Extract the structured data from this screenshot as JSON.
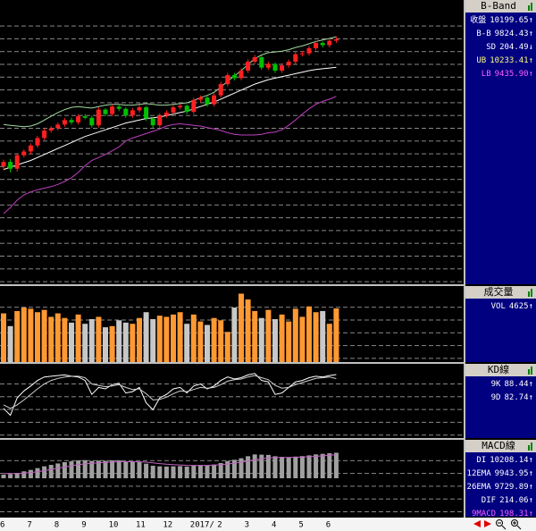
{
  "chart_data": [
    {
      "type": "candlestick",
      "title": "B-Band",
      "categories": [
        "6",
        null,
        null,
        null,
        "7",
        null,
        null,
        null,
        "8",
        null,
        null,
        null,
        "9",
        null,
        null,
        null,
        "10",
        null,
        null,
        null,
        "11",
        null,
        null,
        null,
        "12",
        null,
        null,
        null,
        "2017/",
        null,
        null,
        null,
        "2",
        null,
        null,
        null,
        "3",
        null,
        null,
        null,
        "4",
        null,
        null,
        null,
        "5",
        null,
        null,
        null,
        "6",
        null
      ],
      "open": [
        8500,
        8560,
        8470,
        8650,
        8700,
        8780,
        8880,
        8980,
        9010,
        9060,
        9120,
        9090,
        9170,
        9150,
        9050,
        9260,
        9200,
        9300,
        9270,
        9180,
        9250,
        9290,
        9140,
        9050,
        9180,
        9220,
        9290,
        9310,
        9230,
        9390,
        9420,
        9330,
        9450,
        9600,
        9720,
        9680,
        9780,
        9900,
        9960,
        9820,
        9870,
        9780,
        9850,
        9900,
        10000,
        10010,
        10080,
        10150,
        10120,
        10180
      ],
      "high": [
        8590,
        8600,
        8680,
        8730,
        8810,
        8910,
        9010,
        9040,
        9090,
        9150,
        9150,
        9200,
        9200,
        9180,
        9290,
        9280,
        9330,
        9320,
        9290,
        9280,
        9320,
        9310,
        9160,
        9210,
        9250,
        9320,
        9340,
        9330,
        9420,
        9450,
        9440,
        9480,
        9630,
        9750,
        9750,
        9810,
        9930,
        9990,
        9980,
        9900,
        9890,
        9880,
        9930,
        10030,
        10040,
        10110,
        10180,
        10170,
        10210,
        10240
      ],
      "low": [
        8450,
        8420,
        8430,
        8620,
        8660,
        8750,
        8850,
        8950,
        8980,
        9030,
        9060,
        9060,
        9130,
        9020,
        9020,
        9170,
        9170,
        9240,
        9150,
        9150,
        9220,
        9110,
        9010,
        9020,
        9150,
        9190,
        9260,
        9200,
        9200,
        9360,
        9300,
        9300,
        9420,
        9570,
        9650,
        9650,
        9750,
        9870,
        9790,
        9790,
        9750,
        9750,
        9820,
        9870,
        9970,
        9980,
        10050,
        10090,
        10090,
        10150
      ],
      "close": [
        8560,
        8470,
        8650,
        8700,
        8780,
        8880,
        8980,
        9010,
        9060,
        9120,
        9090,
        9170,
        9150,
        9050,
        9260,
        9200,
        9300,
        9270,
        9180,
        9250,
        9290,
        9140,
        9050,
        9180,
        9220,
        9290,
        9310,
        9230,
        9390,
        9420,
        9330,
        9450,
        9600,
        9720,
        9680,
        9780,
        9900,
        9960,
        9820,
        9870,
        9780,
        9850,
        9900,
        10000,
        10010,
        10080,
        10150,
        10120,
        10180,
        10199.65
      ],
      "up_color": "#ff2020",
      "down_color": "#00c000",
      "bands": [
        {
          "color": "#ffffff",
          "values": [
            8460,
            8490,
            8520,
            8550,
            8580,
            8620,
            8660,
            8700,
            8740,
            8780,
            8820,
            8860,
            8900,
            8930,
            8960,
            8990,
            9020,
            9050,
            9080,
            9100,
            9120,
            9140,
            9150,
            9160,
            9180,
            9200,
            9220,
            9240,
            9270,
            9300,
            9330,
            9360,
            9400,
            9440,
            9480,
            9520,
            9560,
            9600,
            9630,
            9660,
            9680,
            9700,
            9720,
            9740,
            9760,
            9780,
            9795,
            9805,
            9815,
            9824.43
          ]
        },
        {
          "color": "#a0d8a0",
          "values": [
            9060,
            9050,
            9040,
            9030,
            9040,
            9070,
            9120,
            9170,
            9220,
            9260,
            9290,
            9300,
            9290,
            9280,
            9300,
            9320,
            9330,
            9330,
            9320,
            9320,
            9330,
            9340,
            9330,
            9320,
            9320,
            9330,
            9340,
            9350,
            9380,
            9420,
            9450,
            9490,
            9560,
            9640,
            9710,
            9780,
            9860,
            9940,
            9990,
            10020,
            10030,
            10040,
            10060,
            10090,
            10110,
            10140,
            10170,
            10190,
            10210,
            10233.41
          ]
        },
        {
          "color": "#c040c0",
          "values": [
            7870,
            7950,
            8050,
            8120,
            8160,
            8190,
            8210,
            8230,
            8260,
            8300,
            8350,
            8420,
            8510,
            8580,
            8620,
            8660,
            8710,
            8760,
            8840,
            8880,
            8910,
            8940,
            8970,
            9000,
            9040,
            9060,
            9070,
            9060,
            9050,
            9040,
            9020,
            9000,
            8980,
            8950,
            8930,
            8920,
            8920,
            8920,
            8930,
            8950,
            8960,
            8990,
            9050,
            9120,
            9200,
            9270,
            9330,
            9370,
            9400,
            9435.9
          ]
        }
      ],
      "ylim": [
        6950,
        10700
      ],
      "readings": [
        {
          "name": "收盤",
          "value": 10199.65,
          "trend": "↑",
          "color": "#ffffff"
        },
        {
          "name": "B-B",
          "value": 9824.43,
          "trend": "↑",
          "color": "#ffffff"
        },
        {
          "name": "SD",
          "value": 204.49,
          "trend": "↓",
          "color": "#ffffff"
        },
        {
          "name": "UB",
          "value": 10233.41,
          "trend": "↑",
          "color": "#ffff80"
        },
        {
          "name": "LB",
          "value": 9435.9,
          "value_label": "9435.90",
          "trend": "↑",
          "color": "#ff60ff"
        }
      ]
    },
    {
      "type": "bar",
      "title": "成交量",
      "values": [
        4200,
        3100,
        4400,
        4700,
        4600,
        4300,
        4500,
        3900,
        4200,
        3800,
        3400,
        4100,
        3300,
        3700,
        3900,
        3000,
        3100,
        3600,
        3400,
        3300,
        3800,
        4300,
        3700,
        4000,
        3900,
        4100,
        4300,
        3300,
        4100,
        3500,
        3200,
        3800,
        3600,
        2600,
        4700,
        5900,
        5400,
        4400,
        3800,
        4500,
        3700,
        4100,
        3500,
        4600,
        3900,
        4800,
        4300,
        4400,
        3300,
        4625
      ],
      "up_color": "#ff9933",
      "down_color": "#c8c8c8",
      "ylim": [
        0,
        6400
      ],
      "readings": [
        {
          "name": "VOL",
          "value": 4625,
          "trend": "↑",
          "color": "#ffffff"
        }
      ]
    },
    {
      "type": "line",
      "title": "KD線",
      "series": [
        {
          "color": "#ffffff",
          "values": [
            40,
            30,
            55,
            65,
            72,
            80,
            85,
            86,
            87,
            88,
            86,
            85,
            80,
            60,
            70,
            68,
            74,
            76,
            62,
            64,
            70,
            48,
            38,
            55,
            60,
            68,
            70,
            62,
            72,
            75,
            68,
            72,
            80,
            85,
            82,
            84,
            88,
            90,
            80,
            78,
            60,
            62,
            70,
            78,
            80,
            84,
            86,
            85,
            87,
            88.44
          ]
        },
        {
          "color": "#d0d0d0",
          "values": [
            45,
            40,
            45,
            52,
            60,
            68,
            75,
            80,
            83,
            85,
            86,
            86,
            84,
            75,
            73,
            71,
            72,
            74,
            70,
            67,
            68,
            61,
            52,
            53,
            56,
            61,
            65,
            64,
            67,
            70,
            69,
            70,
            74,
            79,
            81,
            82,
            85,
            87,
            84,
            81,
            73,
            69,
            70,
            74,
            77,
            80,
            83,
            84,
            85,
            82.74
          ]
        }
      ],
      "ylim": [
        0,
        100
      ],
      "readings": [
        {
          "name": "9K",
          "value": 88.44,
          "trend": "↑",
          "color": "#ffffff"
        },
        {
          "name": "9D",
          "value": 82.74,
          "trend": "↑",
          "color": "#ffffff"
        }
      ]
    },
    {
      "type": "macd",
      "title": "MACD線",
      "dif": [
        30,
        35,
        45,
        58,
        70,
        85,
        100,
        112,
        124,
        135,
        142,
        150,
        152,
        145,
        148,
        146,
        150,
        150,
        140,
        136,
        135,
        122,
        105,
        100,
        98,
        100,
        102,
        98,
        105,
        110,
        108,
        115,
        128,
        145,
        155,
        168,
        185,
        200,
        198,
        196,
        185,
        180,
        178,
        182,
        186,
        192,
        200,
        205,
        210,
        214.06
      ],
      "macd": [
        40,
        39,
        40,
        43,
        48,
        55,
        64,
        74,
        84,
        94,
        104,
        113,
        121,
        126,
        130,
        133,
        136,
        139,
        139,
        139,
        138,
        135,
        129,
        123,
        118,
        114,
        112,
        109,
        108,
        108,
        108,
        110,
        113,
        120,
        127,
        135,
        145,
        156,
        164,
        170,
        173,
        174,
        175,
        176,
        178,
        180,
        184,
        188,
        193,
        198.31
      ],
      "dif_color": "#a0a0a0",
      "macd_color": "#c060c0",
      "ylim": [
        -300,
        300
      ],
      "readings": [
        {
          "name": "DI",
          "value": 10208.14,
          "trend": "↑",
          "color": "#ffffff"
        },
        {
          "name": "12EMA",
          "value": 9943.95,
          "trend": "↑",
          "color": "#ffffff"
        },
        {
          "name": "26EMA",
          "value": 9729.89,
          "trend": "↑",
          "color": "#ffffff"
        },
        {
          "name": "DIF",
          "value": 214.06,
          "trend": "↑",
          "color": "#ffffff"
        },
        {
          "name": "9MACD",
          "value": 198.31,
          "trend": "↑",
          "color": "#ff60ff"
        }
      ]
    }
  ]
}
